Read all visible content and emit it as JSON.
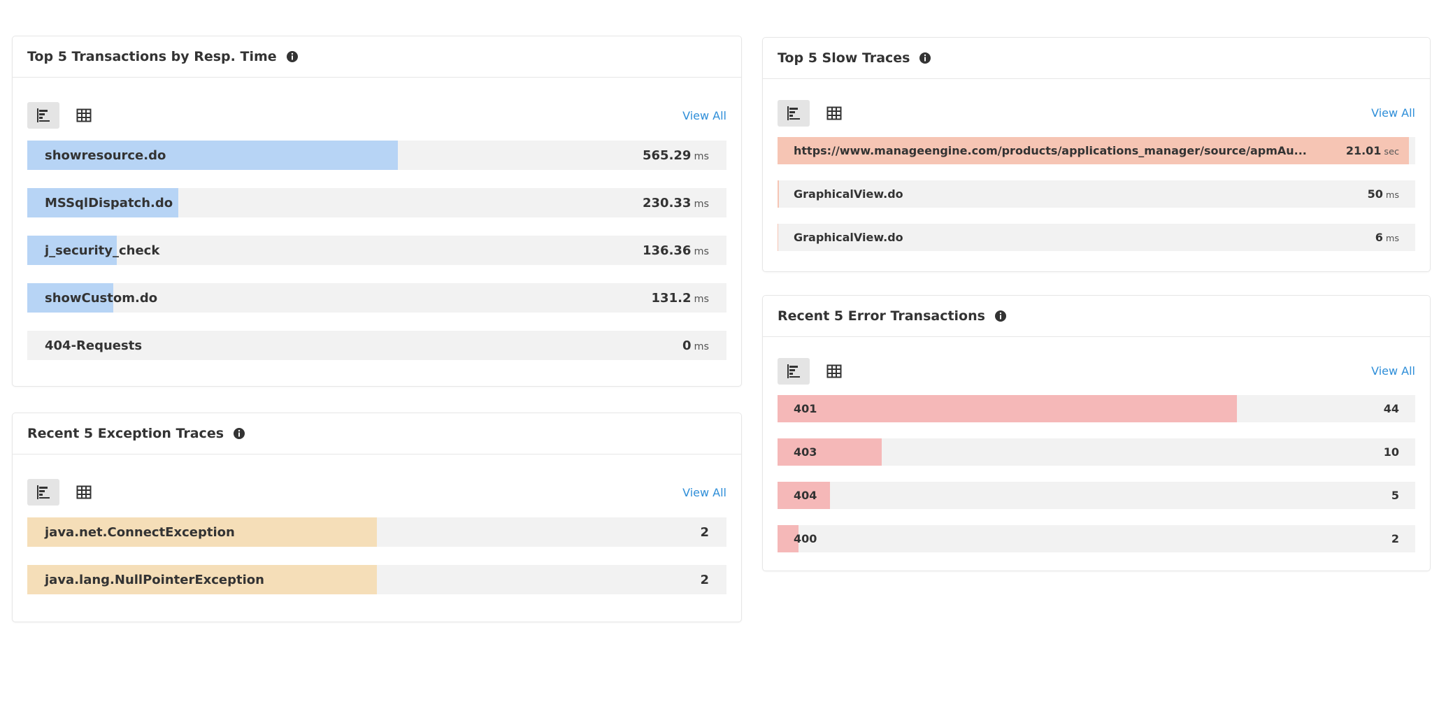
{
  "panels": [
    {
      "title": "Top 5 Transactions by Resp. Time",
      "view_all": "View All",
      "color": "#b7d4f5",
      "rows": [
        {
          "label": "showresource.do",
          "value": 565.29,
          "unit": "ms"
        },
        {
          "label": "MSSqlDispatch.do",
          "value": 230.33,
          "unit": "ms"
        },
        {
          "label": "j_security_check",
          "value": 136.36,
          "unit": "ms"
        },
        {
          "label": "showCustom.do",
          "value": 131.2,
          "unit": "ms"
        },
        {
          "label": "404-Requests",
          "value": 0,
          "unit": "ms"
        }
      ]
    },
    {
      "title": "Recent 5 Exception Traces",
      "view_all": "View All",
      "color": "#f5deb8",
      "rows": [
        {
          "label": "java.net.ConnectException",
          "value": 2
        },
        {
          "label": "java.lang.NullPointerException",
          "value": 2
        }
      ]
    },
    {
      "title": "Top 5 Slow Traces",
      "view_all": "View All",
      "color": "#f6c5b4",
      "rows": [
        {
          "label": "https://www.manageengine.com/products/applications_manager/source/apmAu...",
          "value": 21.01,
          "unit": "sec"
        },
        {
          "label": "GraphicalView.do",
          "value": 50,
          "unit": "ms"
        },
        {
          "label": "GraphicalView.do",
          "value": 6,
          "unit": "ms"
        }
      ]
    },
    {
      "title": "Recent 5 Error Transactions",
      "view_all": "View All",
      "color": "#f5b8b8",
      "rows": [
        {
          "label": "401",
          "value": 44
        },
        {
          "label": "403",
          "value": 10
        },
        {
          "label": "404",
          "value": 5
        },
        {
          "label": "400",
          "value": 2
        }
      ]
    }
  ]
}
